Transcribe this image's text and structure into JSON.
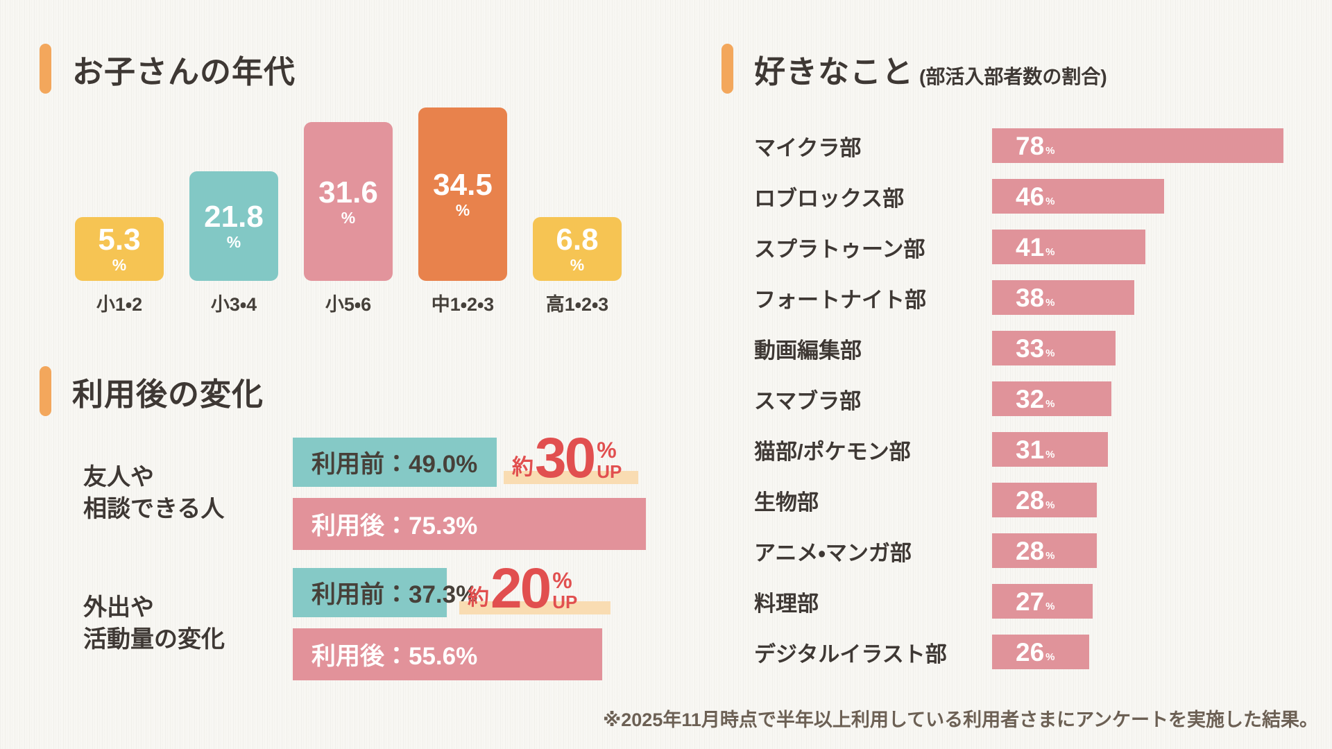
{
  "page": {
    "background_color": "#f8f7f3",
    "accent_color": "#F3A75C",
    "footnote": "※2025年11月時点で半年以上利用している利用者さまにアンケートを実施した結果。"
  },
  "sections": {
    "age": {
      "title": "お子さんの年代"
    },
    "change": {
      "title": "利用後の変化"
    },
    "likes": {
      "title": "好きなこと",
      "subtitle": "(部活入部者数の割合)"
    }
  },
  "chart_data": [
    {
      "id": "children-age",
      "type": "bar",
      "title": "お子さんの年代",
      "orientation": "vertical",
      "categories": [
        "小1・2",
        "小3・4",
        "小5・6",
        "中1・2・3",
        "高1・2・3"
      ],
      "values": [
        5.3,
        21.8,
        31.6,
        34.5,
        6.8
      ],
      "unit": "%",
      "bar_colors": [
        "#F6C453",
        "#82C8C5",
        "#E2949C",
        "#E8824C",
        "#F6C453"
      ],
      "value_label_color": "#ffffff",
      "ylim": [
        0,
        40
      ],
      "grid": false,
      "legend": false
    },
    {
      "id": "after-use-change",
      "type": "bar",
      "title": "利用後の変化",
      "orientation": "horizontal",
      "unit": "%",
      "before_color": "#85C9C6",
      "after_color": "#E2929A",
      "badge_text_color": "#E14F4F",
      "badge_underline_color": "#F9DCB2",
      "groups": [
        {
          "label": "友人や\n相談できる人",
          "before": {
            "label": "利用前",
            "value": 49.0,
            "display": "利用前：49.0%"
          },
          "after": {
            "label": "利用後",
            "value": 75.3,
            "display": "利用後：75.3%"
          },
          "change_badge": {
            "prefix": "約",
            "value": 30,
            "unit": "%",
            "suffix": "UP"
          }
        },
        {
          "label": "外出や\n活動量の変化",
          "before": {
            "label": "利用前",
            "value": 37.3,
            "display": "利用前：37.3%"
          },
          "after": {
            "label": "利用後",
            "value": 55.6,
            "display": "利用後：55.6%"
          },
          "change_badge": {
            "prefix": "約",
            "value": 20,
            "unit": "%",
            "suffix": "UP"
          }
        }
      ]
    },
    {
      "id": "favorite-clubs",
      "type": "bar",
      "title": "好きなこと(部活入部者数の割合)",
      "orientation": "horizontal",
      "unit": "%",
      "bar_color": "#E0939A",
      "value_label_color": "#ffffff",
      "xlim": [
        0,
        100
      ],
      "grid": false,
      "categories": [
        "マイクラ部",
        "ロブロックス部",
        "スプラトゥーン部",
        "フォートナイト部",
        "動画編集部",
        "スマブラ部",
        "猫部/ポケモン部",
        "生物部",
        "アニメ・マンガ部",
        "料理部",
        "デジタルイラスト部"
      ],
      "values": [
        78,
        46,
        41,
        38,
        33,
        32,
        31,
        28,
        28,
        27,
        26
      ]
    }
  ]
}
